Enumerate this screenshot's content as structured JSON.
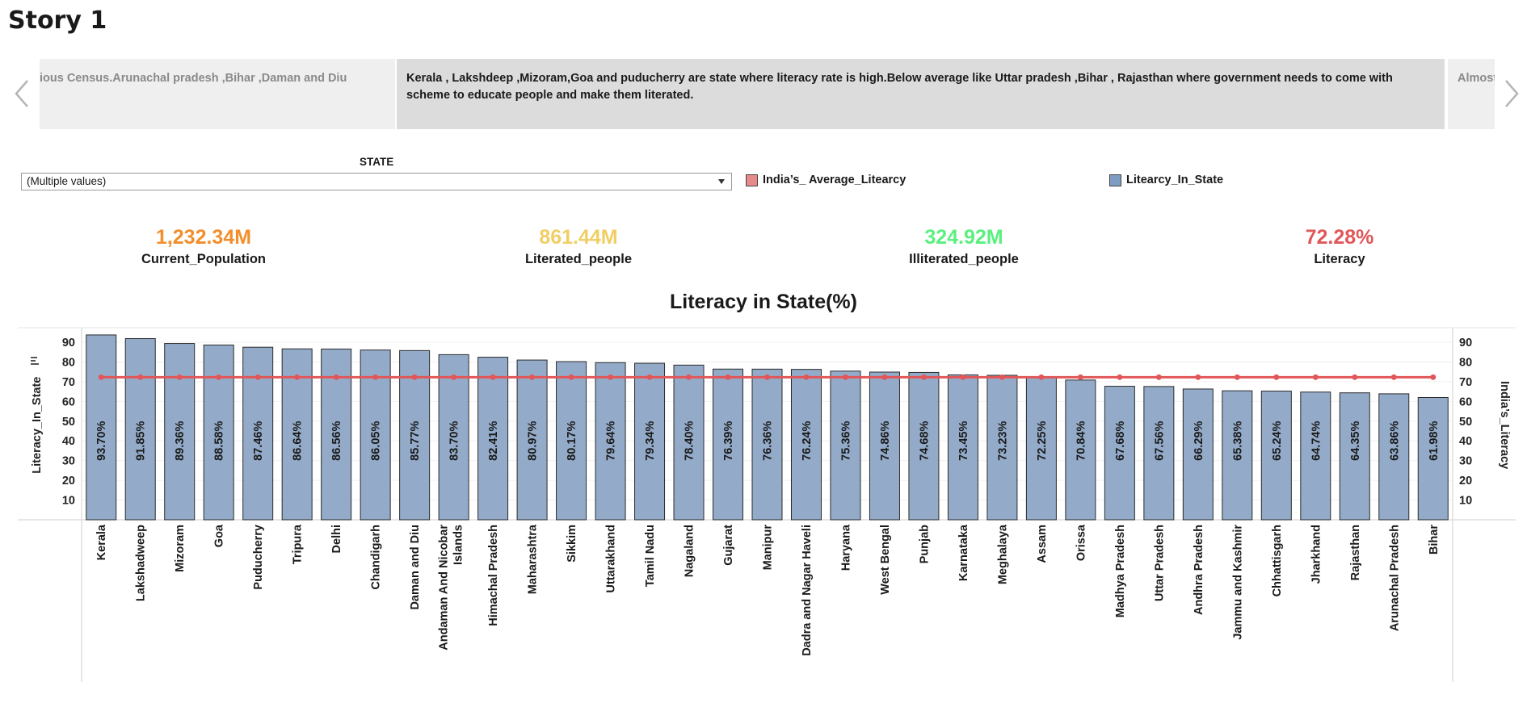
{
  "story": {
    "title": "Story 1",
    "prev_text": "ious Census.Arunachal pradesh ,Bihar ,Daman and Diu",
    "current_text": "Kerala , Lakshdeep ,Mizoram,Goa and puducherry are state where literacy rate is high.Below average like Uttar pradesh ,Bihar , Rajasthan where government needs to come with scheme to educate people and make them literated.",
    "next_text": "Almost Below"
  },
  "filter": {
    "label": "STATE",
    "value": "(Multiple values)"
  },
  "legend": [
    {
      "label": "India’s_ Average_Litearcy",
      "color": "#e15759"
    },
    {
      "label": "Litearcy_In_State",
      "color": "#8aa5c8"
    }
  ],
  "kpis": [
    {
      "value": "1,232.34M",
      "label": "Current_Population",
      "color": "#f28e2b"
    },
    {
      "value": "861.44M",
      "label": "Literated_people",
      "color": "#f1ce63"
    },
    {
      "value": "324.92M",
      "label": "Illiterated_people",
      "color": "#59f07e"
    },
    {
      "value": "72.28%",
      "label": "Literacy",
      "color": "#e15759"
    }
  ],
  "chart_data": {
    "type": "bar",
    "title": "Literacy in State(%)",
    "ylabel": "Literacy_In_State",
    "y2label": "India’s_Literacy",
    "ylim": [
      0,
      97
    ],
    "yticks": [
      10,
      20,
      30,
      40,
      50,
      60,
      70,
      80,
      90
    ],
    "categories": [
      "Kerala",
      "Lakshadweep",
      "Mizoram",
      "Goa",
      "Puducherry",
      "Tripura",
      "Delhi",
      "Chandigarh",
      "Daman and Diu",
      "Andaman And Nicobar Islands",
      "Himachal Pradesh",
      "Maharashtra",
      "Sikkim",
      "Uttarakhand",
      "Tamil Nadu",
      "Nagaland",
      "Gujarat",
      "Manipur",
      "Dadra and Nagar Haveli",
      "Haryana",
      "West Bengal",
      "Punjab",
      "Karnataka",
      "Meghalaya",
      "Assam",
      "Orissa",
      "Madhya Pradesh",
      "Uttar Pradesh",
      "Andhra Pradesh",
      "Jammu and Kashmir",
      "Chhattisgarh",
      "Jharkhand",
      "Rajasthan",
      "Arunachal Pradesh",
      "Bihar"
    ],
    "series": [
      {
        "name": "Litearcy_In_State",
        "type": "bar",
        "color": "#93abc9",
        "values": [
          93.7,
          91.85,
          89.36,
          88.58,
          87.46,
          86.64,
          86.56,
          86.05,
          85.77,
          83.7,
          82.41,
          80.97,
          80.17,
          79.64,
          79.34,
          78.4,
          76.39,
          76.36,
          76.24,
          75.36,
          74.86,
          74.68,
          73.45,
          73.23,
          72.25,
          70.84,
          67.68,
          67.56,
          66.29,
          65.38,
          65.24,
          64.74,
          64.35,
          63.86,
          61.98
        ],
        "labels": [
          "93.70%",
          "91.85%",
          "89.36%",
          "88.58%",
          "87.46%",
          "86.64%",
          "86.56%",
          "86.05%",
          "85.77%",
          "83.70%",
          "82.41%",
          "80.97%",
          "80.17%",
          "79.64%",
          "79.34%",
          "78.40%",
          "76.39%",
          "76.36%",
          "76.24%",
          "75.36%",
          "74.86%",
          "74.68%",
          "73.45%",
          "73.23%",
          "72.25%",
          "70.84%",
          "67.68%",
          "67.56%",
          "66.29%",
          "65.38%",
          "65.24%",
          "64.74%",
          "64.35%",
          "63.86%",
          "61.98%"
        ]
      },
      {
        "name": "India’s_ Average_Litearcy",
        "type": "line",
        "color": "#e15759",
        "values": [
          72.28,
          72.28,
          72.28,
          72.28,
          72.28,
          72.28,
          72.28,
          72.28,
          72.28,
          72.28,
          72.28,
          72.28,
          72.28,
          72.28,
          72.28,
          72.28,
          72.28,
          72.28,
          72.28,
          72.28,
          72.28,
          72.28,
          72.28,
          72.28,
          72.28,
          72.28,
          72.28,
          72.28,
          72.28,
          72.28,
          72.28,
          72.28,
          72.28,
          72.28,
          72.28
        ]
      }
    ]
  }
}
